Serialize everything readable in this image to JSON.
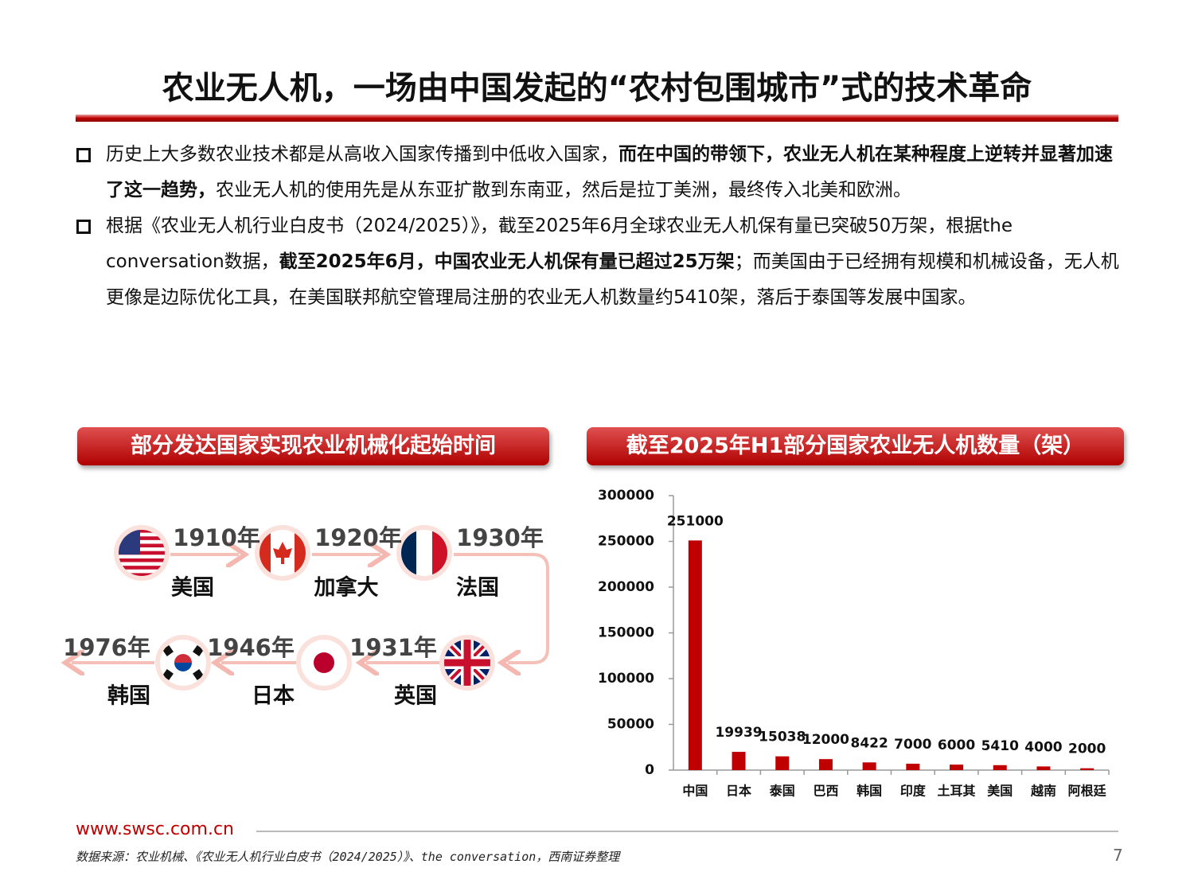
{
  "header": {
    "title": "农业无人机，一场由中国发起的“农村包围城市”式的技术革命"
  },
  "bullets": [
    {
      "segments": [
        {
          "text": "历史上大多数农业技术都是从高收入国家传播到中低收入国家，",
          "bold": false
        },
        {
          "text": "而在中国的带领下，农业无人机在某种程度上逆转并显著加速了这一趋势，",
          "bold": true
        },
        {
          "text": "农业无人机的使用先是从东亚扩散到东南亚，然后是拉丁美洲，最终传入北美和欧洲。",
          "bold": false
        }
      ]
    },
    {
      "segments": [
        {
          "text": "根据《农业无人机行业白皮书（2024/2025）》，截至2025年6月全球农业无人机保有量已突破50万架，根据the conversation数据，",
          "bold": false
        },
        {
          "text": "截至2025年6月，中国农业无人机保有量已超过25万架",
          "bold": true
        },
        {
          "text": "；而美国由于已经拥有规模和机械设备，无人机更像是边际优化工具，在美国联邦航空管理局注册的农业无人机数量约5410架，落后于泰国等发展中国家。",
          "bold": false
        }
      ]
    }
  ],
  "timeline": {
    "title": "部分发达国家实现农业机械化起始时间",
    "items": [
      {
        "year": "1910年",
        "country": "美国"
      },
      {
        "year": "1920年",
        "country": "加拿大"
      },
      {
        "year": "1930年",
        "country": "法国"
      },
      {
        "year": "1931年",
        "country": "英国"
      },
      {
        "year": "1946年",
        "country": "日本"
      },
      {
        "year": "1976年",
        "country": "韩国"
      }
    ]
  },
  "chart_data": {
    "type": "bar",
    "title": "截至2025年H1部分国家农业无人机数量（架）",
    "categories": [
      "中国",
      "日本",
      "泰国",
      "巴西",
      "韩国",
      "印度",
      "土耳其",
      "美国",
      "越南",
      "阿根廷"
    ],
    "values": [
      251000,
      19939,
      15038,
      12000,
      8422,
      7000,
      6000,
      5410,
      4000,
      2000
    ],
    "color": "#c00000",
    "ylim": [
      0,
      300000
    ],
    "yticks": [
      0,
      50000,
      100000,
      150000,
      200000,
      250000,
      300000
    ]
  },
  "footer": {
    "site": "www.swsc.com.cn",
    "source": "数据来源：农业机械、《农业无人机行业白皮书（2024/2025）》、the conversation，西南证券整理",
    "page": "7"
  }
}
